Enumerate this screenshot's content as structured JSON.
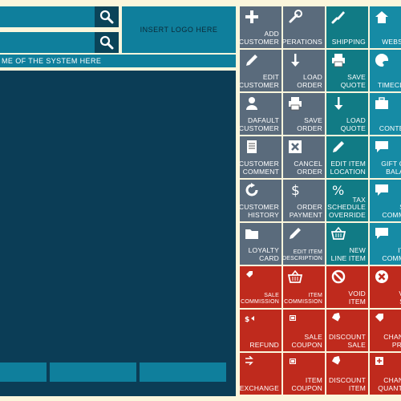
{
  "header": {
    "logo_text": "INSERT LOGO HERE",
    "system_name": "ME OF THE SYSTEM HERE"
  },
  "colors": {
    "slate": "#5a6b7c",
    "teal": "#117b85",
    "blue": "#168ba5",
    "red": "#bf2a1d",
    "panel": "#0b3d56",
    "accent": "#0f7f9c",
    "background": "#fbf6dc"
  },
  "tiles": [
    {
      "label": "ADD\nCUSTOMER",
      "color": "slate",
      "icon": "plus-icon"
    },
    {
      "label": "OPERATIONS",
      "color": "slate",
      "icon": "wrench-icon"
    },
    {
      "label": "SHIPPING",
      "color": "teal",
      "icon": "brush-icon"
    },
    {
      "label": "WEBSIT",
      "color": "blue",
      "icon": "home-icon"
    },
    {
      "label": "EDIT\nCUSTOMER",
      "color": "slate",
      "icon": "pencil-icon"
    },
    {
      "label": "LOAD\nORDER",
      "color": "slate",
      "icon": "arrow-down-icon"
    },
    {
      "label": "SAVE\nQUOTE",
      "color": "teal",
      "icon": "printer-icon"
    },
    {
      "label": "TIMECLO",
      "color": "blue",
      "icon": "palette-icon"
    },
    {
      "label": "DAFAULT\nCUSTOMER",
      "color": "slate",
      "icon": "user-icon"
    },
    {
      "label": "SAVE\nORDER",
      "color": "slate",
      "icon": "printer-icon"
    },
    {
      "label": "LOAD\nQUOTE",
      "color": "teal",
      "icon": "arrow-down-icon"
    },
    {
      "label": "K\nCONTEN",
      "color": "blue",
      "icon": "briefcase-icon"
    },
    {
      "label": "CUSTOMER\nCOMMENT",
      "color": "slate",
      "icon": "document-icon"
    },
    {
      "label": "CANCEL\nORDER",
      "color": "slate",
      "icon": "cancel-icon"
    },
    {
      "label": "EDIT ITEM\nLOCATION",
      "color": "teal",
      "icon": "pencil-icon"
    },
    {
      "label": "GIFT CA\nBALAN",
      "color": "blue",
      "icon": "comment-icon"
    },
    {
      "label": "CUSTOMER\nHISTORY",
      "color": "slate",
      "icon": "refresh-icon"
    },
    {
      "label": "ORDER\nPAYMENT",
      "color": "slate",
      "icon": "dollar-icon"
    },
    {
      "label": "TAX\nSCHEDULE\nOVERRIDE",
      "color": "teal",
      "icon": "percent-icon"
    },
    {
      "label": "SA\nCOMME",
      "color": "blue",
      "icon": "chat-icon"
    },
    {
      "label": "LOYALTY\nCARD",
      "color": "slate",
      "icon": "folder-icon"
    },
    {
      "label": "EDIT ITEM\nDESCRIPTION",
      "color": "slate",
      "icon": "pencil-icon",
      "small": true
    },
    {
      "label": "NEW\nLINE ITEM",
      "color": "teal",
      "icon": "basket-icon"
    },
    {
      "label": "ITE\nCOMME",
      "color": "blue",
      "icon": "comment-icon"
    },
    {
      "label": "SALE\nCOMMISSION",
      "color": "red",
      "icon": "tag-icon",
      "small": true
    },
    {
      "label": "ITEM\nCOMMISSION",
      "color": "red",
      "icon": "basket-icon",
      "small": true
    },
    {
      "label": "VOID\nITEM",
      "color": "red",
      "icon": "no-entry-icon"
    },
    {
      "label": "VO\nSA",
      "color": "red",
      "icon": "cancel-circle-icon"
    },
    {
      "label": "REFUND",
      "color": "red",
      "icon": "refund-tag-icon"
    },
    {
      "label": "SALE\nCOUPON",
      "color": "red",
      "icon": "coupon-icon"
    },
    {
      "label": "DISCOUNT\nSALE",
      "color": "red",
      "icon": "discount-tag-icon"
    },
    {
      "label": "CHANG\nPRIC",
      "color": "red",
      "icon": "price-tag-icon"
    },
    {
      "label": "EXCHANGE",
      "color": "red",
      "icon": "exchange-icon"
    },
    {
      "label": "ITEM\nCOUPON",
      "color": "red",
      "icon": "coupon-icon"
    },
    {
      "label": "DISCOUNT\nITEM",
      "color": "red",
      "icon": "discount-tag-icon"
    },
    {
      "label": "CHANG\nQUANTIT",
      "color": "red",
      "icon": "quantity-icon"
    }
  ]
}
